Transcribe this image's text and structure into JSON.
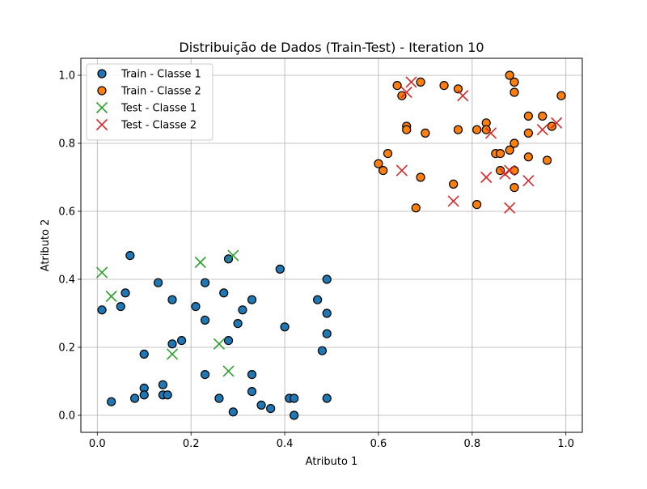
{
  "chart_data": {
    "type": "scatter",
    "title": "Distribuição de Dados (Train-Test) - Iteration 10",
    "xlabel": "Atributo 1",
    "ylabel": "Atributo 2",
    "xlim": [
      -0.035,
      1.035
    ],
    "ylim": [
      -0.05,
      1.05
    ],
    "xticks": [
      0.0,
      0.2,
      0.4,
      0.6,
      0.8,
      1.0
    ],
    "yticks": [
      0.0,
      0.2,
      0.4,
      0.6,
      0.8,
      1.0
    ],
    "grid": true,
    "legend_position": "top-left",
    "series": [
      {
        "name": "Train - Classe 1",
        "marker": "circle",
        "color": "#1f77b4",
        "edgecolor": "#000000",
        "points": [
          [
            0.07,
            0.47
          ],
          [
            0.28,
            0.46
          ],
          [
            0.39,
            0.43
          ],
          [
            0.49,
            0.4
          ],
          [
            0.01,
            0.31
          ],
          [
            0.06,
            0.36
          ],
          [
            0.05,
            0.32
          ],
          [
            0.13,
            0.39
          ],
          [
            0.16,
            0.34
          ],
          [
            0.23,
            0.39
          ],
          [
            0.27,
            0.36
          ],
          [
            0.21,
            0.32
          ],
          [
            0.31,
            0.31
          ],
          [
            0.33,
            0.34
          ],
          [
            0.23,
            0.28
          ],
          [
            0.3,
            0.27
          ],
          [
            0.4,
            0.26
          ],
          [
            0.47,
            0.34
          ],
          [
            0.49,
            0.3
          ],
          [
            0.49,
            0.24
          ],
          [
            0.48,
            0.19
          ],
          [
            0.1,
            0.18
          ],
          [
            0.16,
            0.21
          ],
          [
            0.18,
            0.22
          ],
          [
            0.28,
            0.22
          ],
          [
            0.23,
            0.12
          ],
          [
            0.33,
            0.12
          ],
          [
            0.1,
            0.08
          ],
          [
            0.1,
            0.06
          ],
          [
            0.14,
            0.09
          ],
          [
            0.14,
            0.06
          ],
          [
            0.15,
            0.06
          ],
          [
            0.08,
            0.05
          ],
          [
            0.03,
            0.04
          ],
          [
            0.26,
            0.05
          ],
          [
            0.33,
            0.07
          ],
          [
            0.35,
            0.03
          ],
          [
            0.37,
            0.02
          ],
          [
            0.29,
            0.01
          ],
          [
            0.41,
            0.05
          ],
          [
            0.42,
            0.05
          ],
          [
            0.42,
            0.0
          ],
          [
            0.49,
            0.05
          ]
        ]
      },
      {
        "name": "Train - Classe 2",
        "marker": "circle",
        "color": "#ff7f0e",
        "edgecolor": "#000000",
        "points": [
          [
            0.64,
            0.97
          ],
          [
            0.65,
            0.94
          ],
          [
            0.69,
            0.98
          ],
          [
            0.74,
            0.97
          ],
          [
            0.77,
            0.96
          ],
          [
            0.88,
            1.0
          ],
          [
            0.89,
            0.98
          ],
          [
            0.89,
            0.95
          ],
          [
            0.99,
            0.94
          ],
          [
            0.92,
            0.88
          ],
          [
            0.95,
            0.88
          ],
          [
            0.83,
            0.86
          ],
          [
            0.66,
            0.85
          ],
          [
            0.66,
            0.84
          ],
          [
            0.7,
            0.83
          ],
          [
            0.77,
            0.84
          ],
          [
            0.81,
            0.84
          ],
          [
            0.83,
            0.84
          ],
          [
            0.92,
            0.83
          ],
          [
            0.97,
            0.85
          ],
          [
            0.89,
            0.8
          ],
          [
            0.88,
            0.78
          ],
          [
            0.85,
            0.77
          ],
          [
            0.86,
            0.77
          ],
          [
            0.62,
            0.77
          ],
          [
            0.6,
            0.74
          ],
          [
            0.61,
            0.72
          ],
          [
            0.69,
            0.7
          ],
          [
            0.76,
            0.68
          ],
          [
            0.86,
            0.72
          ],
          [
            0.89,
            0.72
          ],
          [
            0.92,
            0.76
          ],
          [
            0.96,
            0.75
          ],
          [
            0.89,
            0.67
          ],
          [
            0.81,
            0.62
          ],
          [
            0.68,
            0.61
          ]
        ]
      },
      {
        "name": "Test - Classe 1",
        "marker": "x",
        "color": "#2ca02c",
        "points": [
          [
            0.01,
            0.42
          ],
          [
            0.03,
            0.35
          ],
          [
            0.22,
            0.45
          ],
          [
            0.29,
            0.47
          ],
          [
            0.16,
            0.18
          ],
          [
            0.26,
            0.21
          ],
          [
            0.28,
            0.13
          ]
        ]
      },
      {
        "name": "Test - Classe 2",
        "marker": "x",
        "color": "#d62728",
        "points": [
          [
            0.67,
            0.98
          ],
          [
            0.66,
            0.95
          ],
          [
            0.78,
            0.94
          ],
          [
            0.84,
            0.83
          ],
          [
            0.95,
            0.84
          ],
          [
            0.98,
            0.86
          ],
          [
            0.65,
            0.72
          ],
          [
            0.83,
            0.7
          ],
          [
            0.87,
            0.71
          ],
          [
            0.88,
            0.72
          ],
          [
            0.92,
            0.69
          ],
          [
            0.76,
            0.63
          ],
          [
            0.88,
            0.61
          ]
        ]
      }
    ]
  }
}
